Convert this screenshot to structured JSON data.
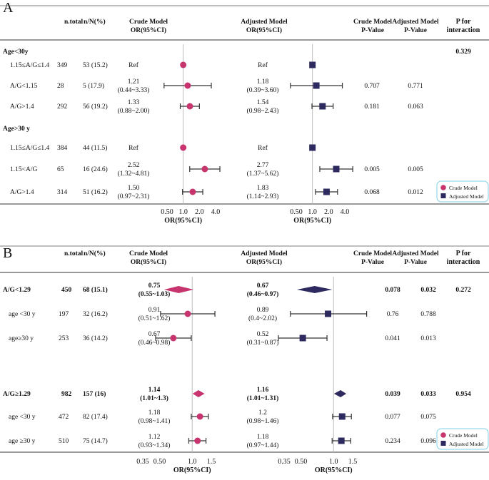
{
  "colors": {
    "crude": "#c8356e",
    "adjusted": "#2c2a5e",
    "refline": "#bdbdbd",
    "legend_border": "#7fd0e8"
  },
  "panelA": {
    "label": "A",
    "headers": {
      "ntotal": "n.total",
      "nN": "n/N(%)",
      "crude1": "Crude Model",
      "crude2": "OR(95%CI)",
      "adj1": "Adjusted Model",
      "adj2": "OR(95%CI)",
      "cp1": "Crude Model",
      "cp2": "P-Value",
      "ap1": "Adjusted Model",
      "ap2": "P-Value",
      "pi1": "P for",
      "pi2": "interaction"
    },
    "axis_label": "OR(95%CI)",
    "tick_labels": [
      "0.50",
      "1.0",
      "2.0",
      "4.0"
    ],
    "tick_values": [
      0.5,
      1,
      2,
      4
    ],
    "legend": {
      "crude": "Crude Model",
      "adjusted": "Adjusted Model"
    },
    "groups": [
      {
        "label": "Age<30y",
        "p_interaction": "0.329",
        "bold": true
      },
      {
        "label": "Age>30 y",
        "p_interaction": "",
        "bold": true
      }
    ],
    "rows": [
      {
        "label": "1.15≤A/G≤1.4",
        "ntotal": "349",
        "nN": "53 (15.2)",
        "crude_l1": "Ref",
        "crude_l2": "",
        "adj_l1": "Ref",
        "adj_l2": "",
        "crude_p": "",
        "adj_p": "",
        "crude": [
          1,
          1,
          1
        ],
        "adjusted": [
          1,
          1,
          1
        ]
      },
      {
        "label": "A/G<1.15",
        "ntotal": "28",
        "nN": "5 (17.9)",
        "crude_l1": "1.21",
        "crude_l2": "(0.44~3.33)",
        "adj_l1": "1.18",
        "adj_l2": "(0.39~3.60)",
        "crude_p": "0.707",
        "adj_p": "0.771",
        "crude": [
          1.21,
          0.44,
          3.33
        ],
        "adjusted": [
          1.18,
          0.39,
          3.6
        ]
      },
      {
        "label": "A/G>1.4",
        "ntotal": "292",
        "nN": "56 (19.2)",
        "crude_l1": "1.33",
        "crude_l2": "(0.88~2.00)",
        "adj_l1": "1.54",
        "adj_l2": "(0.98~2.43)",
        "crude_p": "0.181",
        "adj_p": "0.063",
        "crude": [
          1.33,
          0.88,
          2.0
        ],
        "adjusted": [
          1.54,
          0.98,
          2.43
        ]
      },
      {
        "label": "1.15≤A/G≤1.4",
        "ntotal": "384",
        "nN": "44 (11.5)",
        "crude_l1": "Ref",
        "crude_l2": "",
        "adj_l1": "Ref",
        "adj_l2": "",
        "crude_p": "",
        "adj_p": "",
        "crude": [
          1,
          1,
          1
        ],
        "adjusted": [
          1,
          1,
          1
        ]
      },
      {
        "label": "1.15<A/G",
        "ntotal": "65",
        "nN": "16 (24.6)",
        "crude_l1": "2.52",
        "crude_l2": "(1.32~4.81)",
        "adj_l1": "2.77",
        "adj_l2": "(1.37~5.62)",
        "crude_p": "0.005",
        "adj_p": "0.005",
        "crude": [
          2.52,
          1.32,
          4.81
        ],
        "adjusted": [
          2.77,
          1.37,
          5.62
        ]
      },
      {
        "label": "A/G>1.4",
        "ntotal": "314",
        "nN": "51 (16.2)",
        "crude_l1": "1.50",
        "crude_l2": "(0.97~2.31)",
        "adj_l1": "1.83",
        "adj_l2": "(1.14~2.93)",
        "crude_p": "0.068",
        "adj_p": "0.012",
        "crude": [
          1.5,
          0.97,
          2.31
        ],
        "adjusted": [
          1.83,
          1.14,
          2.93
        ]
      }
    ]
  },
  "panelB": {
    "label": "B",
    "headers": {
      "ntotal": "n.total",
      "nN": "n/N(%)",
      "crude1": "Crude Model",
      "crude2": "OR(95%CI)",
      "adj1": "Adjusted Model",
      "adj2": "OR(95%CI)",
      "cp1": "Crude Model",
      "cp2": "P-Value",
      "ap1": "Adjusted Model",
      "ap2": "P-Value",
      "pi1": "P for",
      "pi2": "interaction"
    },
    "axis_label": "OR(95%CI)",
    "tick_labels": [
      "0.35",
      "0.50",
      "1.0",
      "1.5"
    ],
    "tick_values": [
      0.35,
      0.5,
      1,
      1.5
    ],
    "legend": {
      "crude": "Crude Model",
      "adjusted": "Adjusted Model"
    },
    "rows": [
      {
        "label": "A/G<1.29",
        "ntotal": "450",
        "nN": "68 (15.1)",
        "crude_l1": "0.75",
        "crude_l2": "(0.55~1.03)",
        "adj_l1": "0.67",
        "adj_l2": "(0.46~0.97)",
        "crude_p": "0.078",
        "adj_p": "0.032",
        "p_int": "0.272",
        "bold": true,
        "crude": [
          0.75,
          0.55,
          1.03
        ],
        "adjusted": [
          0.67,
          0.46,
          0.97
        ]
      },
      {
        "label": "age <30 y",
        "ntotal": "197",
        "nN": "32 (16.2)",
        "crude_l1": "0.91",
        "crude_l2": "(0.51~1.62)",
        "adj_l1": "0.89",
        "adj_l2": "(0.4~2.02)",
        "crude_p": "0.76",
        "adj_p": "0.788",
        "p_int": "",
        "bold": false,
        "crude": [
          0.91,
          0.51,
          1.62
        ],
        "adjusted": [
          0.89,
          0.4,
          2.02
        ]
      },
      {
        "label": "age≥30 y",
        "ntotal": "253",
        "nN": "36 (14.2)",
        "crude_l1": "0.67",
        "crude_l2": "(0.46~0.98)",
        "adj_l1": "0.52",
        "adj_l2": "(0.31~0.87)",
        "crude_p": "0.041",
        "adj_p": "0.013",
        "p_int": "",
        "bold": false,
        "crude": [
          0.67,
          0.46,
          0.98
        ],
        "adjusted": [
          0.52,
          0.31,
          0.87
        ]
      },
      {
        "label": "A/G≥1.29",
        "ntotal": "982",
        "nN": "157 (16)",
        "crude_l1": "1.14",
        "crude_l2": "(1.01~1.3)",
        "adj_l1": "1.16",
        "adj_l2": "(1.01~1.31)",
        "crude_p": "0.039",
        "adj_p": "0.033",
        "p_int": "0.954",
        "bold": true,
        "crude": [
          1.14,
          1.01,
          1.3
        ],
        "adjusted": [
          1.16,
          1.01,
          1.31
        ]
      },
      {
        "label": "age <30 y",
        "ntotal": "472",
        "nN": "82 (17.4)",
        "crude_l1": "1.18",
        "crude_l2": "(0.98~1.41)",
        "adj_l1": "1.2",
        "adj_l2": "(0.98~1.46)",
        "crude_p": "0.077",
        "adj_p": "0.075",
        "p_int": "",
        "bold": false,
        "crude": [
          1.18,
          0.98,
          1.41
        ],
        "adjusted": [
          1.2,
          0.98,
          1.46
        ]
      },
      {
        "label": "age ≥30 y",
        "ntotal": "510",
        "nN": "75 (14.7)",
        "crude_l1": "1.12",
        "crude_l2": "(0.93~1.34)",
        "adj_l1": "1.18",
        "adj_l2": "(0.97~1.44)",
        "crude_p": "0.234",
        "adj_p": "0.096",
        "p_int": "",
        "bold": false,
        "crude": [
          1.12,
          0.93,
          1.34
        ],
        "adjusted": [
          1.18,
          0.97,
          1.44
        ]
      }
    ]
  },
  "chart_data": [
    {
      "type": "forest",
      "title": "A",
      "xlabel": "OR(95%CI)",
      "xscale": "log",
      "ticks": [
        0.5,
        1,
        2,
        4
      ],
      "series": [
        {
          "name": "Crude Model",
          "marker": "circle",
          "values": [
            [
              1,
              1,
              1
            ],
            [
              1.21,
              0.44,
              3.33
            ],
            [
              1.33,
              0.88,
              2.0
            ],
            [
              1,
              1,
              1
            ],
            [
              2.52,
              1.32,
              4.81
            ],
            [
              1.5,
              0.97,
              2.31
            ]
          ]
        },
        {
          "name": "Adjusted Model",
          "marker": "square",
          "values": [
            [
              1,
              1,
              1
            ],
            [
              1.18,
              0.39,
              3.6
            ],
            [
              1.54,
              0.98,
              2.43
            ],
            [
              1,
              1,
              1
            ],
            [
              2.77,
              1.37,
              5.62
            ],
            [
              1.83,
              1.14,
              2.93
            ]
          ]
        }
      ],
      "categories": [
        "Age<30y 1.15≤A/G≤1.4",
        "Age<30y A/G<1.15",
        "Age<30y A/G>1.4",
        "Age>30 y 1.15≤A/G≤1.4",
        "Age>30 y 1.15<A/G",
        "Age>30 y A/G>1.4"
      ]
    },
    {
      "type": "forest",
      "title": "B",
      "xlabel": "OR(95%CI)",
      "xscale": "log",
      "ticks": [
        0.35,
        0.5,
        1,
        1.5
      ],
      "series": [
        {
          "name": "Crude Model",
          "marker": "circle",
          "values": [
            [
              0.75,
              0.55,
              1.03
            ],
            [
              0.91,
              0.51,
              1.62
            ],
            [
              0.67,
              0.46,
              0.98
            ],
            [
              1.14,
              1.01,
              1.3
            ],
            [
              1.18,
              0.98,
              1.41
            ],
            [
              1.12,
              0.93,
              1.34
            ]
          ]
        },
        {
          "name": "Adjusted Model",
          "marker": "square",
          "values": [
            [
              0.67,
              0.46,
              0.97
            ],
            [
              0.89,
              0.4,
              2.02
            ],
            [
              0.52,
              0.31,
              0.87
            ],
            [
              1.16,
              1.01,
              1.31
            ],
            [
              1.2,
              0.98,
              1.46
            ],
            [
              1.18,
              0.97,
              1.44
            ]
          ]
        }
      ],
      "categories": [
        "A/G<1.29",
        "A/G<1.29 age <30 y",
        "A/G<1.29 age≥30 y",
        "A/G≥1.29",
        "A/G≥1.29 age <30 y",
        "A/G≥1.29 age ≥30 y"
      ]
    }
  ]
}
